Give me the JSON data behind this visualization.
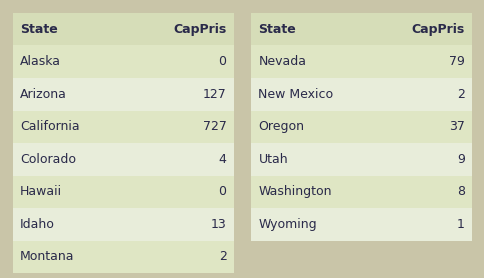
{
  "table1": {
    "headers": [
      "State",
      "CapPris"
    ],
    "rows": [
      [
        "Alaska",
        "0"
      ],
      [
        "Arizona",
        "127"
      ],
      [
        "California",
        "727"
      ],
      [
        "Colorado",
        "4"
      ],
      [
        "Hawaii",
        "0"
      ],
      [
        "Idaho",
        "13"
      ],
      [
        "Montana",
        "2"
      ]
    ]
  },
  "table2": {
    "headers": [
      "State",
      "CapPris"
    ],
    "rows": [
      [
        "Nevada",
        "79"
      ],
      [
        "New Mexico",
        "2"
      ],
      [
        "Oregon",
        "37"
      ],
      [
        "Utah",
        "9"
      ],
      [
        "Washington",
        "8"
      ],
      [
        "Wyoming",
        "1"
      ]
    ]
  },
  "header_color": "#d6ddb8",
  "row_color_a": "#dfe6c4",
  "row_color_b": "#e8edda",
  "fig_bg": "#c9c5a8",
  "text_color": "#2a2a4a",
  "header_font_size": 9,
  "row_font_size": 9
}
